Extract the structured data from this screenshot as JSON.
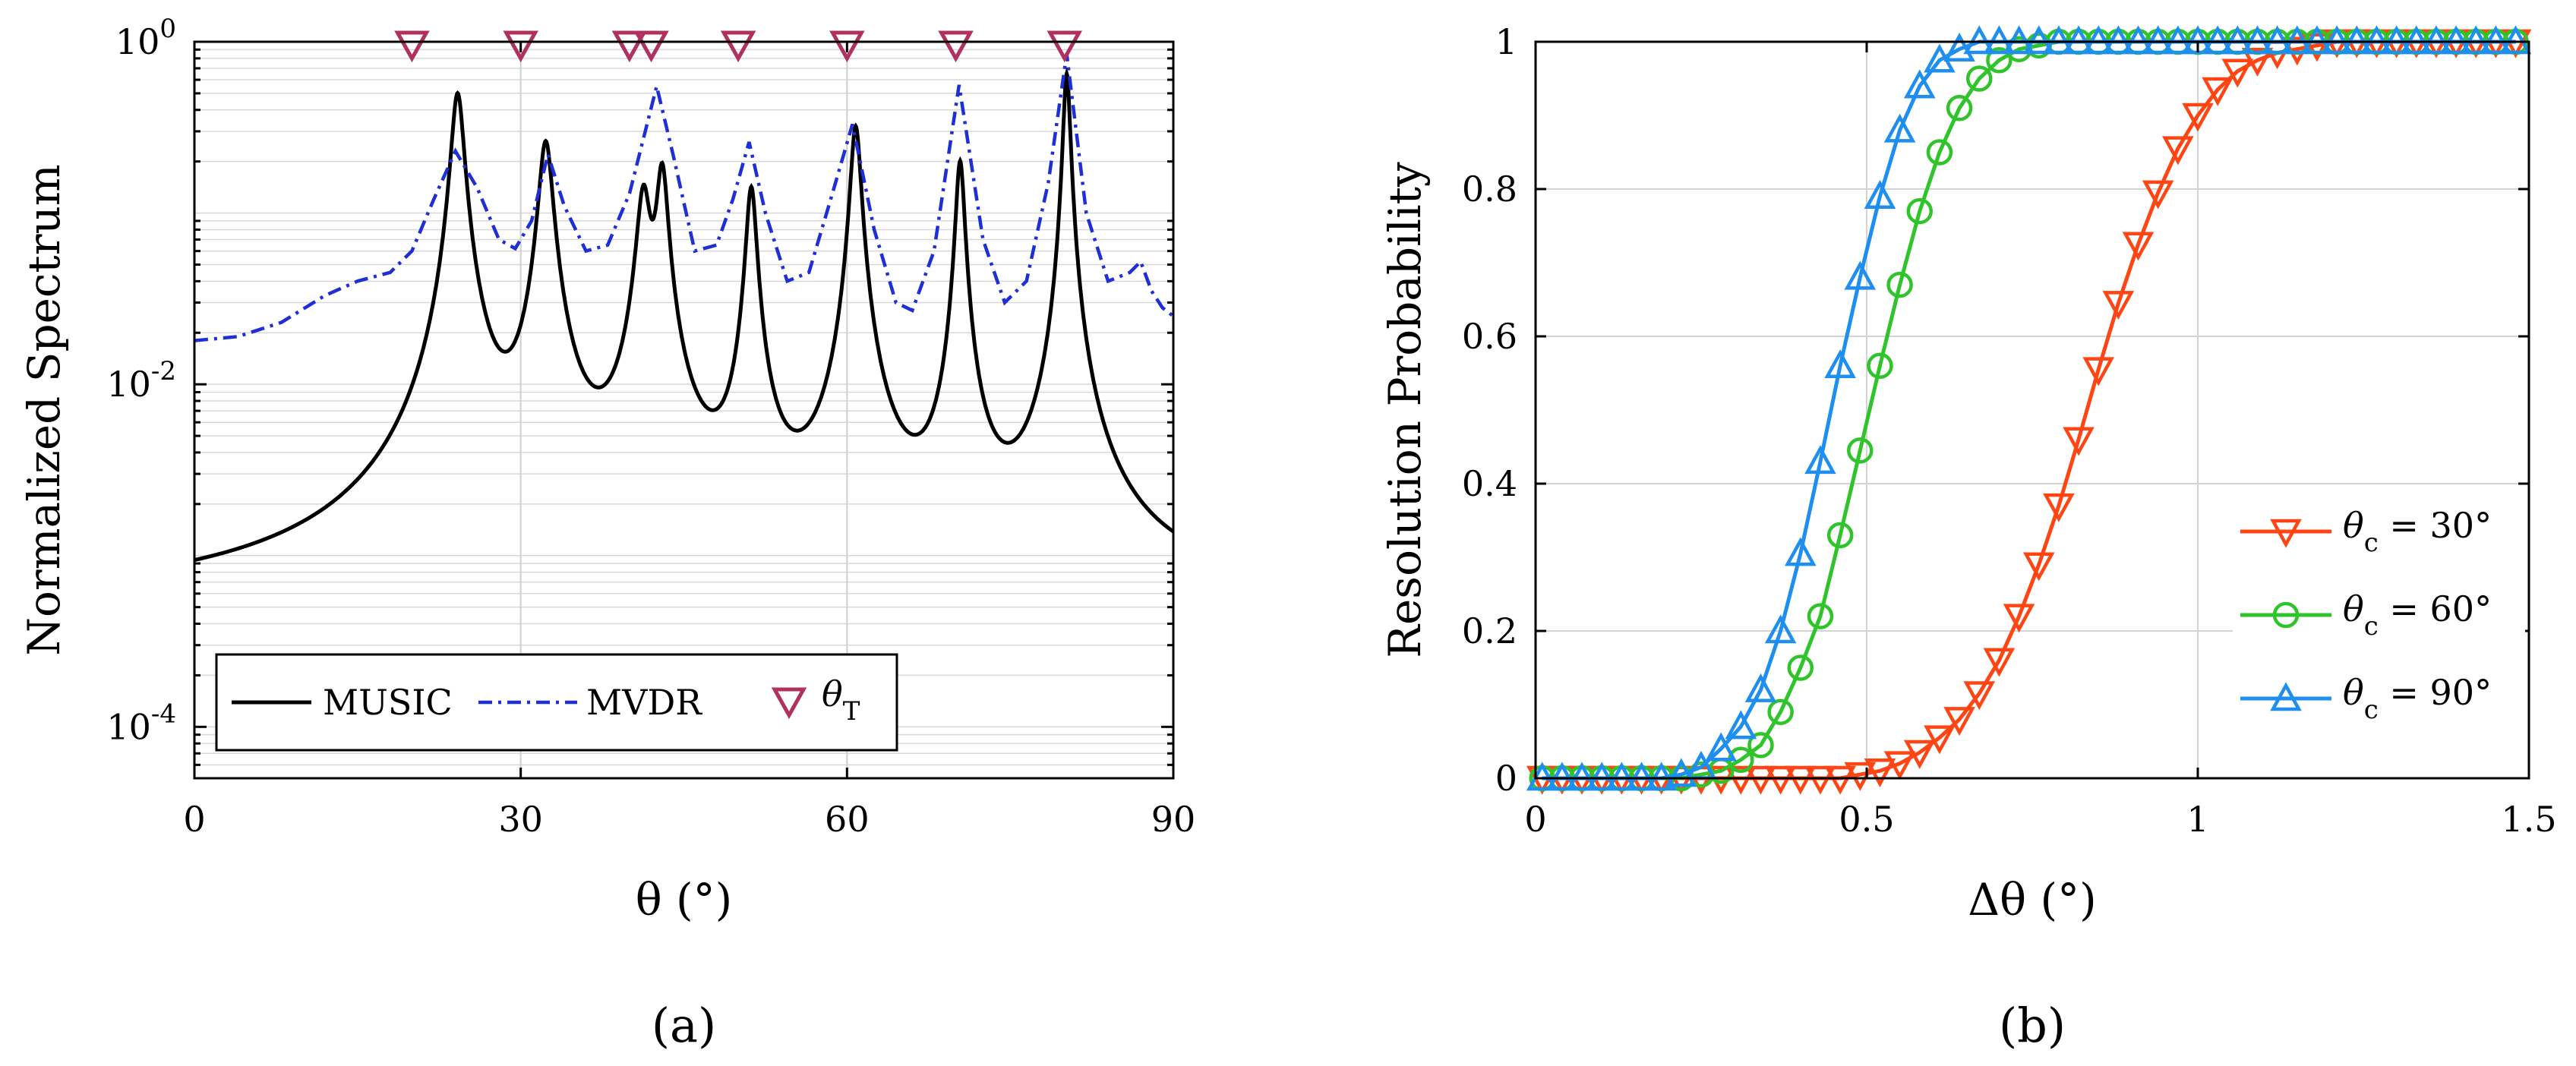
{
  "chart_data": [
    {
      "type": "line",
      "panel_label": "(a)",
      "ylabel": "Normalized Spectrum",
      "xlabel": "θ (°)",
      "xlim": [
        0,
        90
      ],
      "ylim_log10": [
        -4.3,
        0
      ],
      "y_scale": "log",
      "xticks": [
        "0",
        "30",
        "60",
        "90"
      ],
      "yticks": [
        {
          "base": "10",
          "exp": "0",
          "value": 1
        },
        {
          "base": "10",
          "exp": "-2",
          "value": 0.01
        },
        {
          "base": "10",
          "exp": "-4",
          "value": 0.0001
        }
      ],
      "grid": true,
      "legend_placement": "bottom-left",
      "true_angles": [
        20,
        30,
        40,
        42,
        50,
        60,
        70,
        80
      ],
      "series": [
        {
          "name": "MUSIC",
          "color": "#000000",
          "style": "solid",
          "baseline": 0.0005,
          "peaks": [
            {
              "x": 24.2,
              "height": 0.5,
              "width": 0.55
            },
            {
              "x": 32.3,
              "height": 0.26,
              "width": 0.6
            },
            {
              "x": 41.3,
              "height": 0.13,
              "width": 0.6
            },
            {
              "x": 43.0,
              "height": 0.18,
              "width": 0.5
            },
            {
              "x": 51.2,
              "height": 0.14,
              "width": 0.45
            },
            {
              "x": 60.8,
              "height": 0.32,
              "width": 0.45
            },
            {
              "x": 70.4,
              "height": 0.2,
              "width": 0.38
            },
            {
              "x": 80.2,
              "height": 0.65,
              "width": 0.3
            }
          ]
        },
        {
          "name": "MVDR",
          "color": "#1f2fd6",
          "style": "dash-dot",
          "points": [
            [
              0,
              0.018
            ],
            [
              4,
              0.019
            ],
            [
              8,
              0.023
            ],
            [
              12,
              0.033
            ],
            [
              15,
              0.04
            ],
            [
              18,
              0.045
            ],
            [
              20,
              0.06
            ],
            [
              22,
              0.12
            ],
            [
              24,
              0.23
            ],
            [
              26,
              0.14
            ],
            [
              28,
              0.07
            ],
            [
              29.5,
              0.062
            ],
            [
              31,
              0.09
            ],
            [
              32.5,
              0.22
            ],
            [
              34,
              0.11
            ],
            [
              36,
              0.06
            ],
            [
              38,
              0.065
            ],
            [
              40,
              0.13
            ],
            [
              42.5,
              0.55
            ],
            [
              44,
              0.22
            ],
            [
              46,
              0.06
            ],
            [
              48,
              0.065
            ],
            [
              49.5,
              0.12
            ],
            [
              51,
              0.26
            ],
            [
              52.5,
              0.1
            ],
            [
              54.5,
              0.04
            ],
            [
              56.5,
              0.045
            ],
            [
              58.5,
              0.12
            ],
            [
              60.5,
              0.33
            ],
            [
              62.5,
              0.08
            ],
            [
              64.5,
              0.03
            ],
            [
              66,
              0.027
            ],
            [
              68,
              0.06
            ],
            [
              70.3,
              0.56
            ],
            [
              72.5,
              0.07
            ],
            [
              74.5,
              0.03
            ],
            [
              76.5,
              0.04
            ],
            [
              78.5,
              0.15
            ],
            [
              80.2,
              0.85
            ],
            [
              82,
              0.1
            ],
            [
              84,
              0.04
            ],
            [
              86,
              0.045
            ],
            [
              87,
              0.052
            ],
            [
              88,
              0.035
            ],
            [
              89,
              0.028
            ],
            [
              90,
              0.025
            ]
          ]
        }
      ],
      "legend": [
        {
          "label": "MUSIC",
          "kind": "solid"
        },
        {
          "label": "MVDR",
          "kind": "dashdot"
        },
        {
          "label": "θ",
          "sub": "T",
          "kind": "marker"
        }
      ],
      "colors": {
        "music": "#000000",
        "mvdr": "#1f2fd6",
        "marker": "#b03060"
      }
    },
    {
      "type": "line",
      "panel_label": "(b)",
      "ylabel": "Resolution Probability",
      "xlabel": "Δθ (°)",
      "xlim": [
        0,
        1.5
      ],
      "ylim": [
        0,
        1
      ],
      "xticks": [
        "0",
        "0.5",
        "1",
        "1.5"
      ],
      "xtick_values": [
        0,
        0.5,
        1,
        1.5
      ],
      "yticks": [
        "0",
        "0.2",
        "0.4",
        "0.6",
        "0.8",
        "1"
      ],
      "ytick_values": [
        0,
        0.2,
        0.4,
        0.6,
        0.8,
        1
      ],
      "grid": true,
      "legend_placement": "right",
      "series": [
        {
          "name": "θc = 30°",
          "legend_main": "θ",
          "legend_sub": "c",
          "legend_rest": " = 30°",
          "color": "#ff4513",
          "marker": "triangle-down",
          "x": [
            0.01,
            0.04,
            0.07,
            0.1,
            0.13,
            0.16,
            0.19,
            0.22,
            0.25,
            0.28,
            0.31,
            0.34,
            0.37,
            0.4,
            0.43,
            0.46,
            0.49,
            0.52,
            0.55,
            0.58,
            0.61,
            0.64,
            0.67,
            0.7,
            0.73,
            0.76,
            0.79,
            0.82,
            0.85,
            0.88,
            0.91,
            0.94,
            0.97,
            1.0,
            1.03,
            1.06,
            1.09,
            1.12,
            1.15,
            1.18,
            1.21,
            1.24,
            1.27,
            1.3,
            1.33,
            1.36,
            1.39,
            1.42,
            1.45,
            1.48
          ],
          "y": [
            0,
            0,
            0,
            0,
            0,
            0,
            0,
            0,
            0,
            0,
            0,
            0,
            0,
            0,
            0,
            0,
            0.005,
            0.01,
            0.02,
            0.035,
            0.055,
            0.08,
            0.115,
            0.16,
            0.22,
            0.29,
            0.37,
            0.46,
            0.555,
            0.645,
            0.725,
            0.795,
            0.855,
            0.9,
            0.935,
            0.96,
            0.975,
            0.985,
            0.99,
            0.995,
            1,
            1,
            1,
            1,
            1,
            1,
            1,
            1,
            1,
            1
          ],
          "marker_x": [
            0.01,
            0.04,
            0.07,
            0.1,
            0.13,
            0.16,
            0.19,
            0.22,
            0.25,
            0.28,
            0.31,
            0.34,
            0.37,
            0.4,
            0.43,
            0.46,
            0.49,
            0.52,
            0.55,
            0.58,
            0.61,
            0.64,
            0.67,
            0.7,
            0.73,
            0.76,
            0.79,
            0.82,
            0.85,
            0.88,
            0.91,
            0.94,
            0.97,
            1.0,
            1.03,
            1.06,
            1.09,
            1.12,
            1.15,
            1.18,
            1.21,
            1.24,
            1.27,
            1.3,
            1.33,
            1.36,
            1.39,
            1.42,
            1.45,
            1.48
          ]
        },
        {
          "name": "θc = 60°",
          "legend_main": "θ",
          "legend_sub": "c",
          "legend_rest": " = 60°",
          "color": "#2fc42a",
          "marker": "circle",
          "x": [
            0.01,
            0.04,
            0.07,
            0.1,
            0.13,
            0.16,
            0.19,
            0.22,
            0.25,
            0.28,
            0.31,
            0.34,
            0.37,
            0.4,
            0.43,
            0.46,
            0.49,
            0.52,
            0.55,
            0.58,
            0.61,
            0.64,
            0.67,
            0.7,
            0.73,
            0.76,
            0.79,
            0.82,
            0.85,
            0.88,
            0.91,
            0.94,
            0.97,
            1.0,
            1.03,
            1.06,
            1.09,
            1.12,
            1.15,
            1.18,
            1.21,
            1.24,
            1.27,
            1.3,
            1.33,
            1.36,
            1.39,
            1.42,
            1.45,
            1.48
          ],
          "y": [
            0,
            0,
            0,
            0,
            0,
            0,
            0,
            0,
            0.005,
            0.01,
            0.025,
            0.045,
            0.09,
            0.15,
            0.22,
            0.33,
            0.445,
            0.56,
            0.67,
            0.77,
            0.85,
            0.91,
            0.95,
            0.975,
            0.99,
            0.995,
            1,
            1,
            1,
            1,
            1,
            1,
            1,
            1,
            1,
            1,
            1,
            1,
            1,
            1,
            1,
            1,
            1,
            1,
            1,
            1,
            1,
            1,
            1,
            1
          ]
        },
        {
          "name": "θc = 90°",
          "legend_main": "θ",
          "legend_sub": "c",
          "legend_rest": " = 90°",
          "color": "#1e8ff0",
          "marker": "triangle-up",
          "x": [
            0.01,
            0.04,
            0.07,
            0.1,
            0.13,
            0.16,
            0.19,
            0.22,
            0.25,
            0.28,
            0.31,
            0.34,
            0.37,
            0.4,
            0.43,
            0.46,
            0.49,
            0.52,
            0.55,
            0.58,
            0.61,
            0.64,
            0.67,
            0.7,
            0.73,
            0.76,
            0.79,
            0.82,
            0.85,
            0.88,
            0.91,
            0.94,
            0.97,
            1.0,
            1.03,
            1.06,
            1.09,
            1.12,
            1.15,
            1.18,
            1.21,
            1.24,
            1.27,
            1.3,
            1.33,
            1.36,
            1.39,
            1.42,
            1.45,
            1.48
          ],
          "y": [
            0,
            0,
            0,
            0,
            0,
            0,
            0,
            0.005,
            0.015,
            0.04,
            0.07,
            0.12,
            0.2,
            0.305,
            0.43,
            0.56,
            0.68,
            0.79,
            0.88,
            0.94,
            0.975,
            0.99,
            1,
            1,
            1,
            1,
            1,
            1,
            1,
            1,
            1,
            1,
            1,
            1,
            1,
            1,
            1,
            1,
            1,
            1,
            1,
            1,
            1,
            1,
            1,
            1,
            1,
            1,
            1,
            1
          ]
        }
      ]
    }
  ]
}
